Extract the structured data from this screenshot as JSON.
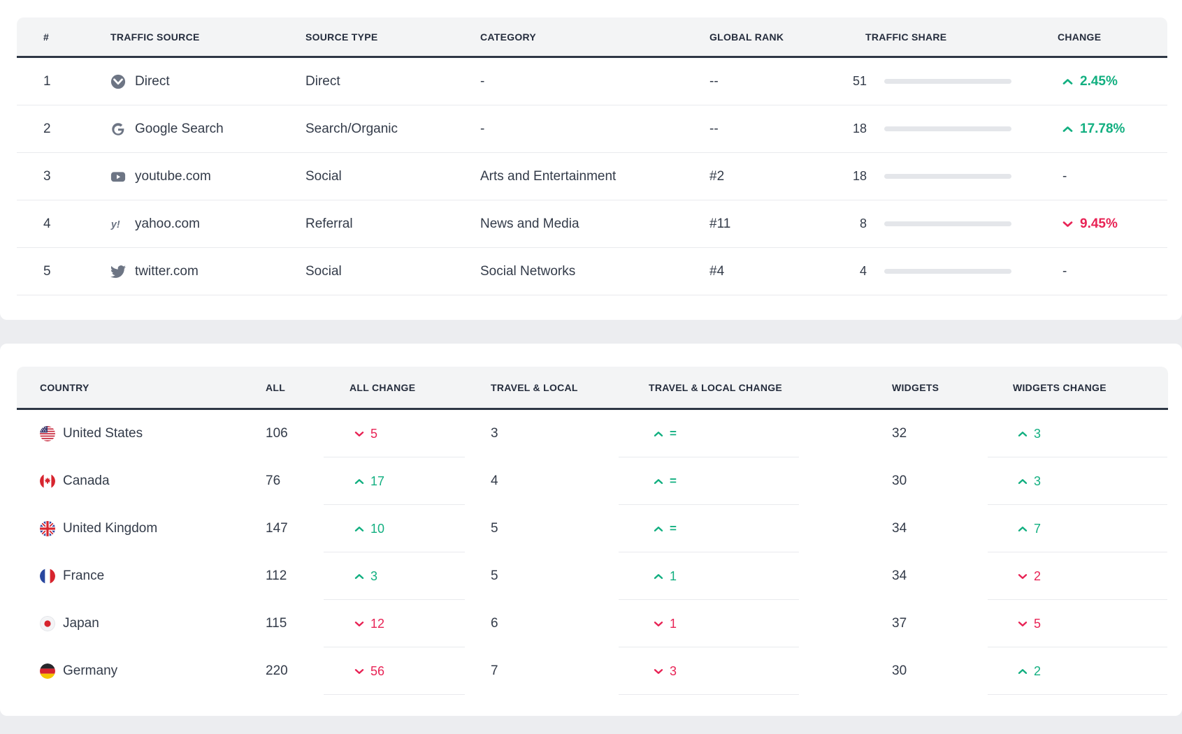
{
  "colors": {
    "positive": "#12af80",
    "negative": "#e82355",
    "bar_fill": "#2a3444",
    "bar_track": "#e4e6ea",
    "header_bg": "#f3f4f5",
    "dark_border": "#2e3745",
    "page_bg": "#ecedf0"
  },
  "traffic_table": {
    "headers": {
      "rank": "#",
      "source": "TRAFFIC SOURCE",
      "type": "SOURCE TYPE",
      "category": "CATEGORY",
      "global_rank": "GLOBAL RANK",
      "share": "TRAFFIC SHARE",
      "change": "CHANGE"
    },
    "rows": [
      {
        "rank": "1",
        "icon": "direct",
        "source": "Direct",
        "type": "Direct",
        "category": "-",
        "global_rank": "--",
        "share": 51,
        "change": {
          "dir": "up",
          "value": "2.45%"
        }
      },
      {
        "rank": "2",
        "icon": "google",
        "source": "Google Search",
        "type": "Search/Organic",
        "category": "-",
        "global_rank": "--",
        "share": 18,
        "change": {
          "dir": "up",
          "value": "17.78%"
        }
      },
      {
        "rank": "3",
        "icon": "youtube",
        "source": "youtube.com",
        "type": "Social",
        "category": "Arts and Entertainment",
        "global_rank": "#2",
        "share": 18,
        "change": {
          "dir": "none",
          "value": "-"
        }
      },
      {
        "rank": "4",
        "icon": "yahoo",
        "source": "yahoo.com",
        "type": "Referral",
        "category": "News and Media",
        "global_rank": "#11",
        "share": 8,
        "change": {
          "dir": "down",
          "value": "9.45%"
        }
      },
      {
        "rank": "5",
        "icon": "twitter",
        "source": "twitter.com",
        "type": "Social",
        "category": "Social Networks",
        "global_rank": "#4",
        "share": 4,
        "change": {
          "dir": "none",
          "value": "-"
        }
      }
    ]
  },
  "country_table": {
    "headers": {
      "country": "COUNTRY",
      "all": "ALL",
      "all_change": "ALL CHANGE",
      "travel": "TRAVEL & LOCAL",
      "travel_change": "TRAVEL & LOCAL CHANGE",
      "widgets": "WIDGETS",
      "widgets_change": "WIDGETS CHANGE"
    },
    "rows": [
      {
        "flag": "us",
        "country": "United States",
        "all": "106",
        "all_change": {
          "dir": "down",
          "value": "5"
        },
        "travel": "3",
        "travel_change": {
          "dir": "up",
          "value": "="
        },
        "widgets": "32",
        "widgets_change": {
          "dir": "up",
          "value": "3"
        }
      },
      {
        "flag": "ca",
        "country": "Canada",
        "all": "76",
        "all_change": {
          "dir": "up",
          "value": "17"
        },
        "travel": "4",
        "travel_change": {
          "dir": "up",
          "value": "="
        },
        "widgets": "30",
        "widgets_change": {
          "dir": "up",
          "value": "3"
        }
      },
      {
        "flag": "gb",
        "country": "United Kingdom",
        "all": "147",
        "all_change": {
          "dir": "up",
          "value": "10"
        },
        "travel": "5",
        "travel_change": {
          "dir": "up",
          "value": "="
        },
        "widgets": "34",
        "widgets_change": {
          "dir": "up",
          "value": "7"
        }
      },
      {
        "flag": "fr",
        "country": "France",
        "all": "112",
        "all_change": {
          "dir": "up",
          "value": "3"
        },
        "travel": "5",
        "travel_change": {
          "dir": "up",
          "value": "1"
        },
        "widgets": "34",
        "widgets_change": {
          "dir": "down",
          "value": "2"
        }
      },
      {
        "flag": "jp",
        "country": "Japan",
        "all": "115",
        "all_change": {
          "dir": "down",
          "value": "12"
        },
        "travel": "6",
        "travel_change": {
          "dir": "down",
          "value": "1"
        },
        "widgets": "37",
        "widgets_change": {
          "dir": "down",
          "value": "5"
        }
      },
      {
        "flag": "de",
        "country": "Germany",
        "all": "220",
        "all_change": {
          "dir": "down",
          "value": "56"
        },
        "travel": "7",
        "travel_change": {
          "dir": "down",
          "value": "3"
        },
        "widgets": "30",
        "widgets_change": {
          "dir": "up",
          "value": "2"
        }
      }
    ]
  }
}
